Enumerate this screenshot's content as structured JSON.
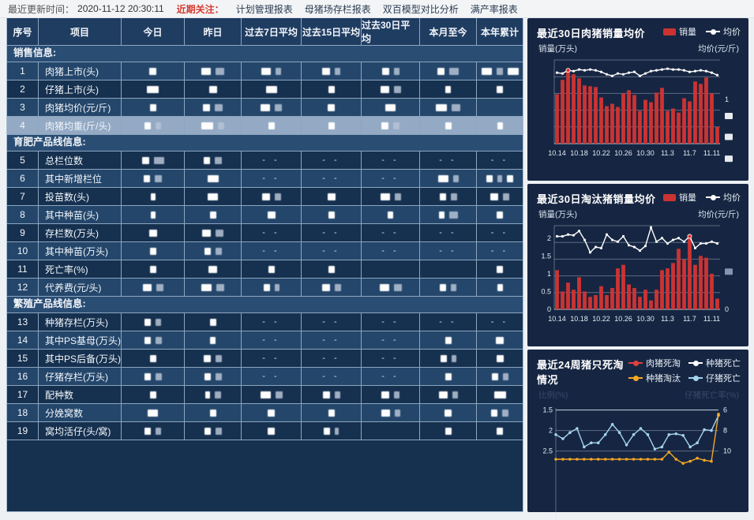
{
  "topbar": {
    "updated_label": "最近更新时间：",
    "updated_time": "2020-11-12 20:30:11",
    "focus_label": "近期关注：",
    "focus_color": "#d43c30",
    "links": [
      "计划管理报表",
      "母猪场存栏报表",
      "双百模型对比分析",
      "满产率报表"
    ]
  },
  "table": {
    "headers": [
      "序号",
      "项目",
      "今日",
      "昨日",
      "过去7日平均",
      "过去15日平均",
      "过去30日平均",
      "本月至今",
      "本年累计"
    ],
    "highlight_row_no": "4",
    "sections": [
      {
        "title": "销售信息:",
        "rows": [
          {
            "no": "1",
            "label": "肉猪上市(头)",
            "cells": [
              [
                9
              ],
              [
                12,
                11
              ],
              [
                12,
                7
              ],
              [
                10,
                7
              ],
              [
                9,
                7
              ],
              [
                9,
                12
              ],
              [
                13,
                8,
                14
              ]
            ]
          },
          {
            "no": "2",
            "label": "仔猪上市(头)",
            "cells": [
              [
                15
              ],
              [
                10
              ],
              [
                14
              ],
              [
                8
              ],
              [
                11,
                9
              ],
              [
                7
              ],
              [
                8
              ]
            ]
          },
          {
            "no": "3",
            "label": "肉猪均价(元/斤)",
            "cells": [
              [
                8
              ],
              [
                9,
                10
              ],
              [
                12,
                9
              ],
              [
                9
              ],
              [
                13
              ],
              [
                14,
                11
              ],
              ""
            ]
          },
          {
            "no": "4",
            "label": "肉猪均重(斤/头)",
            "cells": [
              [
                8,
                7
              ],
              [
                15,
                8
              ],
              [
                8
              ],
              [
                8
              ],
              [
                9,
                8
              ],
              [
                8
              ],
              [
                7
              ]
            ]
          }
        ]
      },
      {
        "title": "育肥产品线信息:",
        "rows": [
          {
            "no": "5",
            "label": "总栏位数",
            "cells": [
              [
                9,
                13
              ],
              [
                8,
                9
              ],
              "--",
              "--",
              "--",
              "--",
              "--"
            ]
          },
          {
            "no": "6",
            "label": "其中新增栏位",
            "cells": [
              [
                8,
                9
              ],
              [
                14
              ],
              "--",
              "--",
              "--",
              [
                13,
                7
              ],
              [
                8,
                6,
                8
              ]
            ]
          },
          {
            "no": "7",
            "label": "投苗数(头)",
            "cells": [
              [
                6
              ],
              [
                13
              ],
              [
                10,
                8
              ],
              [
                10
              ],
              [
                12,
                8
              ],
              [
                8,
                8
              ],
              [
                10,
                8
              ]
            ]
          },
          {
            "no": "8",
            "label": "其中种苗(头)",
            "cells": [
              [
                6
              ],
              [
                8
              ],
              [
                10
              ],
              [
                8
              ],
              [
                7
              ],
              [
                7,
                11
              ],
              [
                8
              ]
            ]
          },
          {
            "no": "9",
            "label": "存栏数(万头)",
            "cells": [
              [
                10
              ],
              [
                11,
                10
              ],
              "--",
              "--",
              "--",
              "--",
              "--"
            ]
          },
          {
            "no": "10",
            "label": "其中种苗(万头)",
            "cells": [
              [
                8
              ],
              [
                8,
                8
              ],
              "--",
              "--",
              "--",
              "--",
              "--"
            ]
          },
          {
            "no": "11",
            "label": "死亡率(%)",
            "cells": [
              [
                8
              ],
              [
                11
              ],
              [
                8
              ],
              [
                8
              ],
              "",
              "",
              [
                8
              ]
            ]
          },
          {
            "no": "12",
            "label": "代养费(元/头)",
            "cells": [
              [
                11,
                9
              ],
              [
                13,
                10
              ],
              [
                8,
                6
              ],
              [
                10,
                8
              ],
              [
                12,
                10
              ],
              [
                8,
                7
              ],
              [
                7
              ]
            ]
          }
        ]
      },
      {
        "title": "繁殖产品线信息:",
        "rows": [
          {
            "no": "13",
            "label": "种猪存栏(万头)",
            "cells": [
              [
                8,
                7
              ],
              [
                8
              ],
              "--",
              "--",
              "--",
              "--",
              "--"
            ]
          },
          {
            "no": "14",
            "label": "其中PS基母(万头)",
            "cells": [
              [
                8,
                8
              ],
              [
                7
              ],
              "--",
              "--",
              "--",
              [
                8
              ],
              [
                10
              ]
            ]
          },
          {
            "no": "15",
            "label": "其中PS后备(万头)",
            "cells": [
              [
                8
              ],
              [
                9,
                8
              ],
              "--",
              "--",
              "--",
              [
                8,
                6
              ],
              [
                9
              ]
            ]
          },
          {
            "no": "16",
            "label": "仔猪存栏(万头)",
            "cells": [
              [
                8,
                8
              ],
              [
                8,
                8
              ],
              "--",
              "--",
              "--",
              [
                8
              ],
              [
                8,
                7
              ]
            ]
          },
          {
            "no": "17",
            "label": "配种数",
            "cells": [
              [
                8
              ],
              [
                6,
                8
              ],
              [
                13,
                9
              ],
              [
                9,
                7
              ],
              [
                10,
                7
              ],
              [
                11,
                7
              ],
              [
                15
              ]
            ]
          },
          {
            "no": "18",
            "label": "分娩窝数",
            "cells": [
              [
                13
              ],
              [
                8
              ],
              [
                9
              ],
              [
                8
              ],
              [
                11,
                7
              ],
              [
                9
              ],
              [
                8,
                8
              ]
            ]
          },
          {
            "no": "19",
            "label": "窝均活仔(头/窝)",
            "cells": [
              [
                8,
                7
              ],
              [
                8,
                8
              ],
              [
                9
              ],
              [
                8,
                5
              ],
              "",
              [
                8
              ],
              [
                8
              ]
            ]
          }
        ]
      }
    ]
  },
  "chart_data": [
    {
      "type": "bar+line",
      "title": "最近30日肉猪销量均价",
      "legend": [
        "销量",
        "均价"
      ],
      "colors": {
        "bar": "#cb3332",
        "line": "#ffffff",
        "marker": "#e0322c"
      },
      "ylabel_left": "销量(万头)",
      "ylabel_right": "均价(元/斤)",
      "x_labels": [
        "10.14",
        "10.18",
        "10.22",
        "10.26",
        "10.30",
        "11.3",
        "11.7",
        "11.11"
      ],
      "right_ticks": [
        "1"
      ],
      "bars": [
        0.62,
        0.8,
        0.93,
        0.87,
        0.82,
        0.73,
        0.72,
        0.71,
        0.58,
        0.47,
        0.5,
        0.46,
        0.63,
        0.67,
        0.61,
        0.41,
        0.55,
        0.52,
        0.64,
        0.7,
        0.41,
        0.44,
        0.39,
        0.57,
        0.53,
        0.78,
        0.75,
        0.83,
        0.63,
        0.21
      ],
      "line": [
        0.89,
        0.88,
        0.92,
        0.91,
        0.93,
        0.92,
        0.93,
        0.92,
        0.9,
        0.87,
        0.85,
        0.88,
        0.87,
        0.89,
        0.9,
        0.85,
        0.88,
        0.91,
        0.92,
        0.93,
        0.94,
        0.93,
        0.93,
        0.92,
        0.9,
        0.91,
        0.92,
        0.91,
        0.89,
        0.86
      ],
      "marker_index": 2
    },
    {
      "type": "bar+line",
      "title": "最近30日淘汰猪销量均价",
      "legend": [
        "销量",
        "均价"
      ],
      "colors": {
        "bar": "#cb3332",
        "line": "#ffffff",
        "marker": "#e0322c"
      },
      "ylabel_left": "销量(万头)",
      "ylabel_right": "均价(元/斤)",
      "x_labels": [
        "10.14",
        "10.18",
        "10.22",
        "10.26",
        "10.30",
        "11.3",
        "11.7",
        "11.11"
      ],
      "left_ticks": [
        "0",
        "0.5",
        "1",
        "1.5",
        "2"
      ],
      "right_ticks": [
        "0"
      ],
      "ylim_left": [
        0,
        2
      ],
      "bars": [
        1.1,
        0.5,
        0.75,
        0.55,
        0.9,
        0.5,
        0.35,
        0.4,
        0.65,
        0.4,
        0.6,
        1.15,
        1.25,
        0.7,
        0.6,
        0.35,
        0.55,
        0.25,
        0.55,
        1.1,
        1.15,
        1.3,
        1.7,
        1.4,
        2.05,
        1.25,
        1.5,
        1.45,
        1.0,
        0.3
      ],
      "line": [
        2.05,
        2.05,
        2.1,
        2.08,
        2.2,
        1.95,
        1.6,
        1.75,
        1.72,
        2.1,
        1.95,
        1.9,
        2.05,
        1.8,
        1.75,
        1.65,
        1.78,
        2.3,
        1.9,
        2.0,
        1.85,
        1.95,
        2.0,
        1.9,
        2.05,
        1.72,
        1.85,
        1.85,
        1.9,
        1.85
      ],
      "marker_index": 24
    },
    {
      "type": "line",
      "title": "最近24周猪只死淘情况",
      "legend": [
        {
          "label": "肉猪死淘",
          "color": "#e2403d"
        },
        {
          "label": "种猪死亡",
          "color": "#ffffff"
        },
        {
          "label": "种猪淘汰",
          "color": "#f5a623"
        },
        {
          "label": "仔猪死亡",
          "color": "#a5d3ee"
        }
      ],
      "ylabel_left": "比例(%)",
      "ylabel_right": "仔猪死亡率(%)",
      "left_ticks": [
        "2.5",
        "2",
        "1.5"
      ],
      "right_ticks": [
        "10",
        "8",
        "6"
      ],
      "ylim_left": [
        1.5,
        2.5
      ],
      "ylim_right": [
        6,
        10
      ],
      "series": [
        {
          "name": "仔猪死亡",
          "axis": "left",
          "color": "#a5d3ee",
          "values": [
            1.9,
            1.8,
            1.95,
            2.05,
            1.6,
            1.7,
            1.7,
            1.9,
            2.15,
            1.95,
            1.65,
            1.9,
            2.05,
            1.9,
            1.55,
            1.6,
            1.9,
            1.92,
            1.88,
            1.6,
            1.7,
            2.02,
            2.0,
            2.37
          ]
        },
        {
          "name": "种猪淘汰",
          "axis": "right",
          "color": "#f5a623",
          "values": [
            5.2,
            5.2,
            5.2,
            5.2,
            5.2,
            5.2,
            5.2,
            5.2,
            5.2,
            5.2,
            5.2,
            5.2,
            5.2,
            5.2,
            5.2,
            5.2,
            5.9,
            5.2,
            4.8,
            5.0,
            5.3,
            5.1,
            5.0,
            9.6
          ]
        }
      ]
    }
  ]
}
